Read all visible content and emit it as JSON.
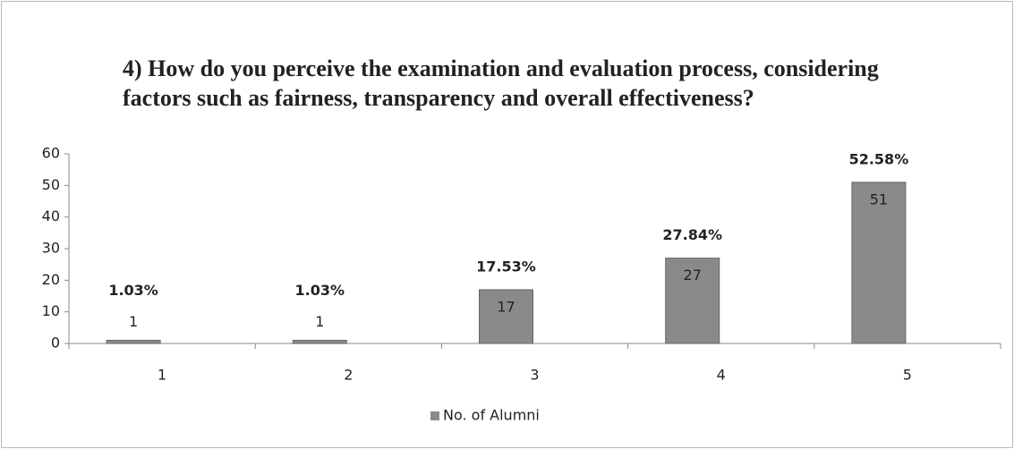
{
  "chart_data": {
    "type": "bar",
    "title": "4) How do you perceive the examination and evaluation process, considering factors such as fairness, transparency and overall effectiveness?",
    "categories": [
      "1",
      "2",
      "3",
      "4",
      "5"
    ],
    "series": [
      {
        "name": "No. of Alumni",
        "color": "#8a8a8a",
        "values": [
          1,
          1,
          17,
          27,
          51
        ]
      }
    ],
    "percent_labels": [
      "1.03%",
      "1.03%",
      "17.53%",
      "27.84%",
      "52.58%"
    ],
    "ylim": [
      0,
      60
    ],
    "yticks": [
      0,
      10,
      20,
      30,
      40,
      50,
      60
    ],
    "grid": false,
    "legend": "bottom"
  }
}
